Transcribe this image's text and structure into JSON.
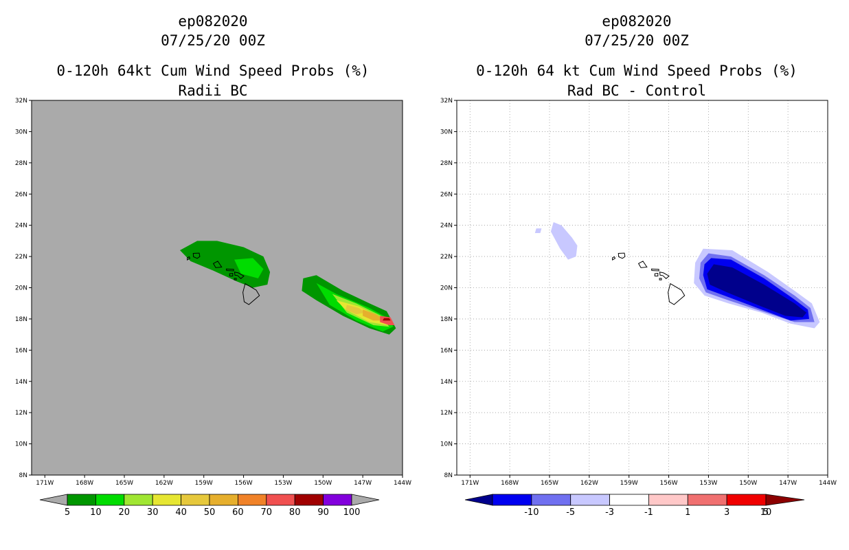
{
  "chart_data": [
    {
      "type": "heatmap",
      "title_lines": [
        "ep082020",
        "07/25/20 00Z",
        "0-120h 64kt Cum Wind Speed Probs (%)",
        "Radii BC"
      ],
      "x_ticks": [
        "171W",
        "168W",
        "165W",
        "162W",
        "159W",
        "156W",
        "153W",
        "150W",
        "147W",
        "144W"
      ],
      "y_ticks": [
        "8N",
        "10N",
        "12N",
        "14N",
        "16N",
        "18N",
        "20N",
        "22N",
        "24N",
        "26N",
        "28N",
        "30N",
        "32N"
      ],
      "xlim": [
        -172,
        -144
      ],
      "ylim": [
        8,
        32
      ],
      "background": "#aaaaaa",
      "gridlines": false,
      "colorbar": {
        "labels": [
          "5",
          "10",
          "20",
          "30",
          "40",
          "50",
          "60",
          "70",
          "80",
          "90",
          "100"
        ],
        "colors": [
          "#009600",
          "#00dc00",
          "#a0e632",
          "#e6e632",
          "#e6c83c",
          "#e6af2d",
          "#f08228",
          "#f05050",
          "#a00000",
          "#8200dc"
        ],
        "end_color": "#aaaaaa"
      },
      "regions": [
        {
          "name": "hawaii-swath",
          "value": "5-10",
          "color": "#009600",
          "points": [
            [
              -160.8,
              22.4
            ],
            [
              -159.5,
              23.0
            ],
            [
              -158,
              23.0
            ],
            [
              -156,
              22.6
            ],
            [
              -154.5,
              22.0
            ],
            [
              -154.0,
              21.0
            ],
            [
              -154.2,
              20.2
            ],
            [
              -155.3,
              20.0
            ],
            [
              -156.5,
              20.4
            ],
            [
              -158.3,
              21.1
            ],
            [
              -160,
              21.7
            ]
          ]
        },
        {
          "name": "hawaii-swath-inner",
          "value": "10-20",
          "color": "#00dc00",
          "points": [
            [
              -156.7,
              21.8
            ],
            [
              -155.3,
              21.9
            ],
            [
              -154.5,
              21.2
            ],
            [
              -154.9,
              20.6
            ],
            [
              -156.2,
              20.9
            ]
          ]
        },
        {
          "name": "east-swath",
          "value": "5-10",
          "color": "#009600",
          "points": [
            [
              -151.5,
              20.6
            ],
            [
              -150.5,
              20.8
            ],
            [
              -148.5,
              19.8
            ],
            [
              -146.5,
              19.0
            ],
            [
              -145.2,
              18.5
            ],
            [
              -144.5,
              17.4
            ],
            [
              -145,
              17.0
            ],
            [
              -146.5,
              17.4
            ],
            [
              -148.5,
              18.2
            ],
            [
              -150.5,
              19.2
            ],
            [
              -151.6,
              19.8
            ]
          ]
        },
        {
          "name": "east-swath-10",
          "value": "10-20",
          "color": "#00dc00",
          "points": [
            [
              -150.5,
              20.3
            ],
            [
              -149,
              19.6
            ],
            [
              -146.5,
              18.7
            ],
            [
              -145,
              18
            ],
            [
              -144.7,
              17.5
            ],
            [
              -145.5,
              17.2
            ],
            [
              -147.5,
              17.9
            ],
            [
              -149.5,
              18.9
            ]
          ]
        },
        {
          "name": "east-swath-20",
          "value": "20-30",
          "color": "#a0e632",
          "points": [
            [
              -149.3,
              19.6
            ],
            [
              -147.5,
              19.0
            ],
            [
              -145.6,
              18.2
            ],
            [
              -145.0,
              17.5
            ],
            [
              -146.2,
              17.6
            ],
            [
              -148.2,
              18.4
            ]
          ]
        },
        {
          "name": "east-swath-30",
          "value": "30-40",
          "color": "#e6e632",
          "points": [
            [
              -149.0,
              19.2
            ],
            [
              -147.3,
              18.8
            ],
            [
              -145.4,
              18.0
            ],
            [
              -145.1,
              17.6
            ],
            [
              -146.5,
              17.8
            ],
            [
              -148.3,
              18.6
            ]
          ]
        },
        {
          "name": "east-swath-40",
          "value": "40-50",
          "color": "#e6c83c",
          "points": [
            [
              -148.2,
              18.9
            ],
            [
              -147.3,
              18.7
            ],
            [
              -146.8,
              18.4
            ],
            [
              -147.5,
              18.3
            ],
            [
              -148.3,
              18.6
            ]
          ]
        },
        {
          "name": "east-swath-50",
          "value": "50-60",
          "color": "#e6af2d",
          "points": [
            [
              -147.0,
              18.6
            ],
            [
              -146.0,
              18.3
            ],
            [
              -145.3,
              17.9
            ],
            [
              -146.2,
              17.9
            ],
            [
              -147.0,
              18.2
            ]
          ]
        },
        {
          "name": "east-swath-70",
          "value": "70-80",
          "color": "#f05050",
          "points": [
            [
              -145.7,
              18.2
            ],
            [
              -144.9,
              18.1
            ],
            [
              -144.6,
              17.6
            ],
            [
              -145.0,
              17.6
            ],
            [
              -145.7,
              17.8
            ]
          ]
        },
        {
          "name": "east-swath-80",
          "value": "80-90",
          "color": "#a00000",
          "points": [
            [
              -145.4,
              18.05
            ],
            [
              -145.0,
              18.05
            ],
            [
              -144.9,
              17.9
            ],
            [
              -145.5,
              17.9
            ]
          ]
        }
      ]
    },
    {
      "type": "heatmap",
      "title_lines": [
        "ep082020",
        "07/25/20 00Z",
        "0-120h 64 kt Cum Wind Speed Probs (%)",
        "Rad BC - Control"
      ],
      "x_ticks": [
        "171W",
        "168W",
        "165W",
        "162W",
        "159W",
        "156W",
        "153W",
        "150W",
        "147W",
        "144W"
      ],
      "y_ticks": [
        "8N",
        "10N",
        "12N",
        "14N",
        "16N",
        "18N",
        "20N",
        "22N",
        "24N",
        "26N",
        "28N",
        "30N",
        "32N"
      ],
      "xlim": [
        -172,
        -144
      ],
      "ylim": [
        8,
        32
      ],
      "background": "#ffffff",
      "gridlines": true,
      "colorbar": {
        "labels": [
          "-10",
          "-5",
          "-3",
          "-1",
          "1",
          "3",
          "5",
          "10"
        ],
        "colors": [
          "#0000f0",
          "#7070f0",
          "#c8c8ff",
          "#ffffff",
          "#ffc8c8",
          "#f07070",
          "#f00000"
        ],
        "end_left_color": "#00008c",
        "end_right_color": "#8c0000"
      },
      "regions": [
        {
          "name": "diff-nw-small",
          "value": "-3 to -1",
          "color": "#c8c8ff",
          "points": [
            [
              -166.0,
              23.8
            ],
            [
              -165.6,
              23.8
            ],
            [
              -165.7,
              23.5
            ],
            [
              -166.1,
              23.5
            ]
          ]
        },
        {
          "name": "diff-nw",
          "value": "-3 to -1",
          "color": "#c8c8ff",
          "points": [
            [
              -164.7,
              24.2
            ],
            [
              -164.1,
              24.0
            ],
            [
              -163.3,
              23.2
            ],
            [
              -162.9,
              22.7
            ],
            [
              -163.0,
              22.0
            ],
            [
              -163.6,
              21.8
            ],
            [
              -164.2,
              22.5
            ],
            [
              -164.9,
              23.6
            ]
          ]
        },
        {
          "name": "diff-outer",
          "value": "-3 to -1",
          "color": "#c8c8ff",
          "points": [
            [
              -153.4,
              22.5
            ],
            [
              -151.2,
              22.4
            ],
            [
              -148.5,
              21.0
            ],
            [
              -146.5,
              19.8
            ],
            [
              -145.2,
              19.0
            ],
            [
              -144.6,
              17.8
            ],
            [
              -145,
              17.4
            ],
            [
              -146.8,
              17.7
            ],
            [
              -149,
              18.4
            ],
            [
              -151.5,
              19.0
            ],
            [
              -153.3,
              19.5
            ],
            [
              -154.1,
              20.3
            ],
            [
              -154.0,
              21.6
            ]
          ]
        },
        {
          "name": "diff-mid",
          "value": "-5 to -3",
          "color": "#7070f0",
          "points": [
            [
              -153.0,
              22.2
            ],
            [
              -151.3,
              22.0
            ],
            [
              -148.8,
              20.8
            ],
            [
              -146.5,
              19.5
            ],
            [
              -145.3,
              18.7
            ],
            [
              -145.0,
              17.8
            ],
            [
              -146.5,
              17.8
            ],
            [
              -149,
              18.5
            ],
            [
              -151.5,
              19.2
            ],
            [
              -153.2,
              19.7
            ],
            [
              -153.7,
              20.6
            ],
            [
              -153.6,
              21.6
            ]
          ]
        },
        {
          "name": "diff-inner",
          "value": "-10 to -5",
          "color": "#0000f0",
          "points": [
            [
              -152.8,
              21.9
            ],
            [
              -151.3,
              21.8
            ],
            [
              -148.8,
              20.6
            ],
            [
              -146.6,
              19.3
            ],
            [
              -145.5,
              18.6
            ],
            [
              -145.4,
              18.0
            ],
            [
              -146.8,
              17.9
            ],
            [
              -149,
              18.6
            ],
            [
              -151.5,
              19.4
            ],
            [
              -153.1,
              19.9
            ],
            [
              -153.4,
              20.8
            ],
            [
              -153.3,
              21.5
            ]
          ]
        },
        {
          "name": "diff-core",
          "value": "< -10",
          "color": "#00008c",
          "points": [
            [
              -152.6,
              21.5
            ],
            [
              -151.2,
              21.3
            ],
            [
              -148.8,
              20.2
            ],
            [
              -146.5,
              19.0
            ],
            [
              -145.6,
              18.4
            ],
            [
              -145.9,
              18.1
            ],
            [
              -147.2,
              18.2
            ],
            [
              -149.3,
              18.9
            ],
            [
              -151.6,
              19.7
            ],
            [
              -152.9,
              20.2
            ],
            [
              -153.1,
              20.9
            ]
          ]
        }
      ]
    }
  ]
}
